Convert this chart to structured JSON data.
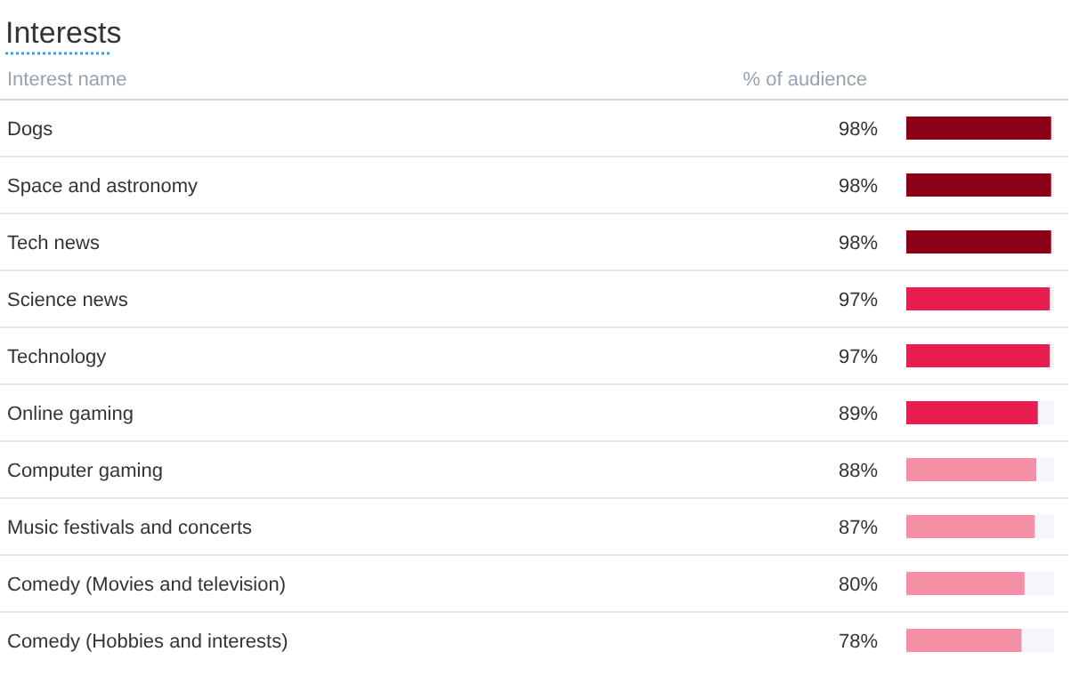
{
  "chart_data": {
    "type": "bar",
    "orientation": "horizontal",
    "title": "Interests",
    "ylabel": "Interest name",
    "xlabel": "% of audience",
    "categories": [
      "Dogs",
      "Space and astronomy",
      "Tech news",
      "Science news",
      "Technology",
      "Online gaming",
      "Computer gaming",
      "Music festivals and concerts",
      "Comedy (Movies and television)",
      "Comedy (Hobbies and interests)"
    ],
    "values": [
      98,
      98,
      98,
      97,
      97,
      89,
      88,
      87,
      80,
      78
    ],
    "value_labels": [
      "98%",
      "98%",
      "98%",
      "97%",
      "97%",
      "89%",
      "88%",
      "87%",
      "80%",
      "78%"
    ],
    "colors": [
      "#8b0018",
      "#8b0018",
      "#8b0018",
      "#e91e50",
      "#e91e50",
      "#e91e50",
      "#f48fa8",
      "#f48fa8",
      "#f48fa8",
      "#f48fa8"
    ],
    "xlim": [
      0,
      100
    ]
  }
}
